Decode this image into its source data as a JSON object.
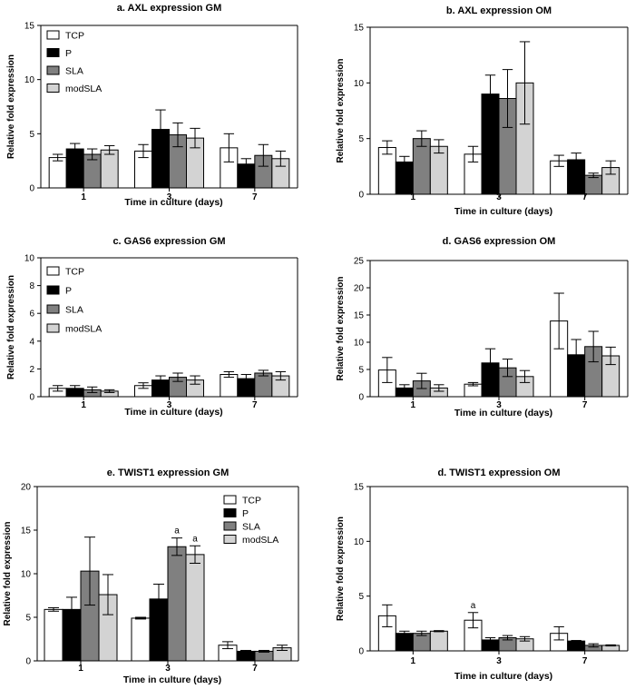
{
  "colors": {
    "TCP": "#ffffff",
    "P": "#000000",
    "SLA": "#808080",
    "modSLA": "#d3d3d3",
    "axis": "#000000"
  },
  "chart_data": [
    {
      "type": "bar",
      "title": "a. AXL expression GM",
      "xlabel": "Time in culture (days)",
      "ylabel": "Relative fold expression",
      "categories": [
        "1",
        "3",
        "7"
      ],
      "ylim": [
        0,
        15
      ],
      "yticks": [
        0,
        5,
        10,
        15
      ],
      "legend": "top-left",
      "series": [
        {
          "name": "TCP",
          "values": [
            2.8,
            3.4,
            3.7
          ],
          "errors": [
            0.3,
            0.6,
            1.3
          ]
        },
        {
          "name": "P",
          "values": [
            3.6,
            5.4,
            2.2
          ],
          "errors": [
            0.5,
            1.8,
            0.5
          ]
        },
        {
          "name": "SLA",
          "values": [
            3.1,
            4.9,
            3.0
          ],
          "errors": [
            0.5,
            1.1,
            1.0
          ]
        },
        {
          "name": "modSLA",
          "values": [
            3.5,
            4.6,
            2.7
          ],
          "errors": [
            0.4,
            0.9,
            0.7
          ]
        }
      ],
      "annotations": []
    },
    {
      "type": "bar",
      "title": "b. AXL expression OM",
      "xlabel": "Time in culture (days)",
      "ylabel": "Relative fold expression",
      "categories": [
        "1",
        "3",
        "7"
      ],
      "ylim": [
        0,
        15
      ],
      "yticks": [
        0,
        5,
        10,
        15
      ],
      "legend": "none",
      "series": [
        {
          "name": "TCP",
          "values": [
            4.2,
            3.6,
            3.0
          ],
          "errors": [
            0.6,
            0.7,
            0.5
          ]
        },
        {
          "name": "P",
          "values": [
            2.9,
            9.0,
            3.1
          ],
          "errors": [
            0.5,
            1.7,
            0.6
          ]
        },
        {
          "name": "SLA",
          "values": [
            5.0,
            8.6,
            1.7
          ],
          "errors": [
            0.7,
            2.6,
            0.2
          ]
        },
        {
          "name": "modSLA",
          "values": [
            4.3,
            10.0,
            2.4
          ],
          "errors": [
            0.6,
            3.7,
            0.6
          ]
        }
      ],
      "annotations": []
    },
    {
      "type": "bar",
      "title": "c. GAS6 expression GM",
      "xlabel": "Time in culture (days)",
      "ylabel": "Relative fold expression",
      "categories": [
        "1",
        "3",
        "7"
      ],
      "ylim": [
        0,
        10
      ],
      "yticks": [
        0,
        2,
        4,
        6,
        8,
        10
      ],
      "legend": "top-left",
      "series": [
        {
          "name": "TCP",
          "values": [
            0.6,
            0.8,
            1.6
          ],
          "errors": [
            0.2,
            0.2,
            0.2
          ]
        },
        {
          "name": "P",
          "values": [
            0.6,
            1.2,
            1.3
          ],
          "errors": [
            0.2,
            0.3,
            0.3
          ]
        },
        {
          "name": "SLA",
          "values": [
            0.5,
            1.4,
            1.7
          ],
          "errors": [
            0.2,
            0.3,
            0.2
          ]
        },
        {
          "name": "modSLA",
          "values": [
            0.4,
            1.2,
            1.5
          ],
          "errors": [
            0.1,
            0.3,
            0.3
          ]
        }
      ],
      "annotations": []
    },
    {
      "type": "bar",
      "title": "d. GAS6 expression OM",
      "xlabel": "Time in culture (days)",
      "ylabel": "Relative fold expression",
      "categories": [
        "1",
        "3",
        "7"
      ],
      "ylim": [
        0,
        25
      ],
      "yticks": [
        0,
        5,
        10,
        15,
        20,
        25
      ],
      "legend": "none",
      "series": [
        {
          "name": "TCP",
          "values": [
            4.9,
            2.3,
            13.9
          ],
          "errors": [
            2.3,
            0.3,
            5.1
          ]
        },
        {
          "name": "P",
          "values": [
            1.6,
            6.2,
            7.7
          ],
          "errors": [
            0.6,
            2.6,
            2.8
          ]
        },
        {
          "name": "SLA",
          "values": [
            2.9,
            5.3,
            9.2
          ],
          "errors": [
            1.4,
            1.6,
            2.8
          ]
        },
        {
          "name": "modSLA",
          "values": [
            1.6,
            3.7,
            7.5
          ],
          "errors": [
            0.6,
            1.1,
            1.6
          ]
        }
      ],
      "annotations": []
    },
    {
      "type": "bar",
      "title": "e. TWIST1 expression GM",
      "xlabel": "Time in culture (days)",
      "ylabel": "Relative fold expression",
      "categories": [
        "1",
        "3",
        "7"
      ],
      "ylim": [
        0,
        20
      ],
      "yticks": [
        0,
        5,
        10,
        15,
        20
      ],
      "legend": "top-right",
      "series": [
        {
          "name": "TCP",
          "values": [
            5.9,
            4.9,
            1.8
          ],
          "errors": [
            0.2,
            0.1,
            0.4
          ]
        },
        {
          "name": "P",
          "values": [
            5.9,
            7.1,
            1.1
          ],
          "errors": [
            1.4,
            1.7,
            0.1
          ]
        },
        {
          "name": "SLA",
          "values": [
            10.3,
            13.1,
            1.1
          ],
          "errors": [
            3.9,
            1.0,
            0.1
          ]
        },
        {
          "name": "modSLA",
          "values": [
            7.6,
            12.2,
            1.5
          ],
          "errors": [
            2.3,
            1.0,
            0.3
          ]
        }
      ],
      "annotations": [
        {
          "text": "a",
          "category": "3",
          "series": "SLA"
        },
        {
          "text": "a",
          "category": "3",
          "series": "modSLA"
        }
      ]
    },
    {
      "type": "bar",
      "title": "d. TWIST1 expression OM",
      "xlabel": "Time in culture (days)",
      "ylabel": "Relative fold expression",
      "categories": [
        "1",
        "3",
        "7"
      ],
      "ylim": [
        0,
        15
      ],
      "yticks": [
        0,
        5,
        10,
        15
      ],
      "legend": "none",
      "series": [
        {
          "name": "TCP",
          "values": [
            3.2,
            2.8,
            1.6
          ],
          "errors": [
            1.0,
            0.7,
            0.6
          ]
        },
        {
          "name": "P",
          "values": [
            1.6,
            1.0,
            0.9
          ],
          "errors": [
            0.2,
            0.2,
            0.05
          ]
        },
        {
          "name": "SLA",
          "values": [
            1.6,
            1.2,
            0.5
          ],
          "errors": [
            0.2,
            0.2,
            0.15
          ]
        },
        {
          "name": "modSLA",
          "values": [
            1.8,
            1.1,
            0.5
          ],
          "errors": [
            0.05,
            0.2,
            0.05
          ]
        }
      ],
      "annotations": [
        {
          "text": "a",
          "category": "3",
          "series": "TCP"
        }
      ]
    }
  ]
}
